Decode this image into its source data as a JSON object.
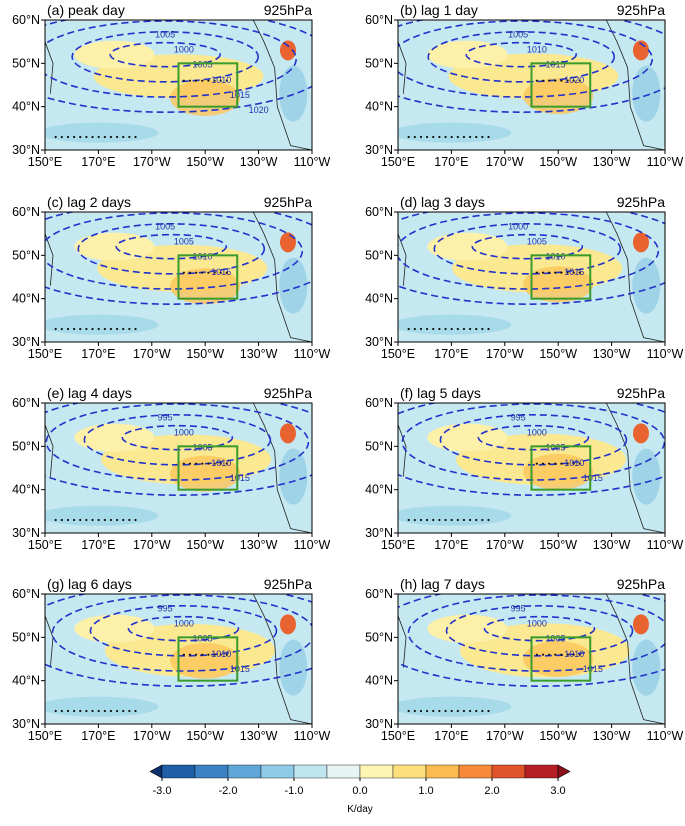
{
  "panels": [
    {
      "label": "(a) peak day",
      "level": "925hPa",
      "contours": [
        "1005",
        "1000",
        "1005",
        "1010",
        "1015",
        "1020"
      ]
    },
    {
      "label": "(b) lag 1 day",
      "level": "925hPa",
      "contours": [
        "1005",
        "1010",
        "1015",
        "1020"
      ]
    },
    {
      "label": "(c) lag 2 days",
      "level": "925hPa",
      "contours": [
        "1005",
        "1005",
        "1010",
        "1015"
      ]
    },
    {
      "label": "(d) lag 3 days",
      "level": "925hPa",
      "contours": [
        "1000",
        "1005",
        "1010",
        "1015"
      ]
    },
    {
      "label": "(e) lag 4 days",
      "level": "925hPa",
      "contours": [
        "995",
        "1000",
        "1005",
        "1010",
        "1015"
      ]
    },
    {
      "label": "(f) lag 5 days",
      "level": "925hPa",
      "contours": [
        "995",
        "1000",
        "1005",
        "1010",
        "1015"
      ]
    },
    {
      "label": "(g) lag 6 days",
      "level": "925hPa",
      "contours": [
        "995",
        "1000",
        "1005",
        "1010",
        "1015"
      ]
    },
    {
      "label": "(h) lag 7 days",
      "level": "925hPa",
      "contours": [
        "995",
        "1000",
        "1005",
        "1010",
        "1015"
      ]
    }
  ],
  "axes": {
    "lat_ticks": [
      {
        "value": 60,
        "label": "60°N"
      },
      {
        "value": 50,
        "label": "50°N"
      },
      {
        "value": 40,
        "label": "40°N"
      },
      {
        "value": 30,
        "label": "30°N"
      }
    ],
    "lon_ticks": [
      {
        "value": 150,
        "label": "150°E"
      },
      {
        "value": 170,
        "label": "170°E"
      },
      {
        "value": 190,
        "label": "170°W"
      },
      {
        "value": 210,
        "label": "150°W"
      },
      {
        "value": 230,
        "label": "130°W"
      },
      {
        "value": 250,
        "label": "110°W"
      }
    ]
  },
  "colorbar": {
    "label": "K/day",
    "ticks": [
      {
        "value": -3,
        "label": "-3.0"
      },
      {
        "value": -2,
        "label": "-2.0"
      },
      {
        "value": -1,
        "label": "-1.0"
      },
      {
        "value": 0,
        "label": "0.0"
      },
      {
        "value": 1,
        "label": "1.0"
      },
      {
        "value": 2,
        "label": "2.0"
      },
      {
        "value": 3,
        "label": "3.0"
      }
    ],
    "colors": [
      "#0b2f6b",
      "#1f5fa6",
      "#3b82c4",
      "#5fa6d8",
      "#8fcbe6",
      "#bfe5f0",
      "#e6f5f2",
      "#fdf5b4",
      "#fde07b",
      "#fcbb50",
      "#f7893a",
      "#e0542b",
      "#b51e25",
      "#8a0f16"
    ]
  }
}
